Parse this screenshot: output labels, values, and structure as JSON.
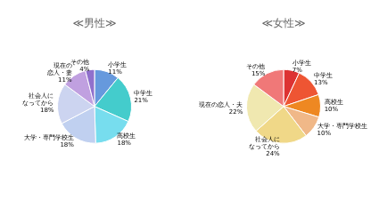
{
  "chart_data": [
    {
      "type": "pie",
      "title": "≪男性≫",
      "categories": [
        "小学生",
        "中学生",
        "高校生",
        "大学・専門学校生",
        "社会人に\nなってから",
        "現在の\n恋人・妻",
        "その他"
      ],
      "values": [
        11,
        21,
        18,
        18,
        18,
        11,
        4
      ],
      "value_labels": [
        "11%",
        "21%",
        "18%",
        "18%",
        "18%",
        "11%",
        "4%"
      ],
      "colors": [
        "#6699dd",
        "#44cccc",
        "#77ddee",
        "#c0d0f0",
        "#ccd4f0",
        "#c0a0e0",
        "#9070cc"
      ],
      "data_labels": true,
      "legend": false
    },
    {
      "type": "pie",
      "title": "≪女性≫",
      "categories": [
        "小学生",
        "中学生",
        "高校生",
        "大学・専門学校生",
        "社会人に\nなってから",
        "現在の恋人・夫",
        "その他"
      ],
      "values": [
        7,
        13,
        10,
        10,
        24,
        22,
        15
      ],
      "value_labels": [
        "7%",
        "13%",
        "10%",
        "10%",
        "24%",
        "22%",
        "15%"
      ],
      "colors": [
        "#dd3333",
        "#ee5533",
        "#ee8822",
        "#f0b888",
        "#f0d888",
        "#f0e8b0",
        "#f07878"
      ],
      "data_labels": true,
      "legend": false
    }
  ]
}
